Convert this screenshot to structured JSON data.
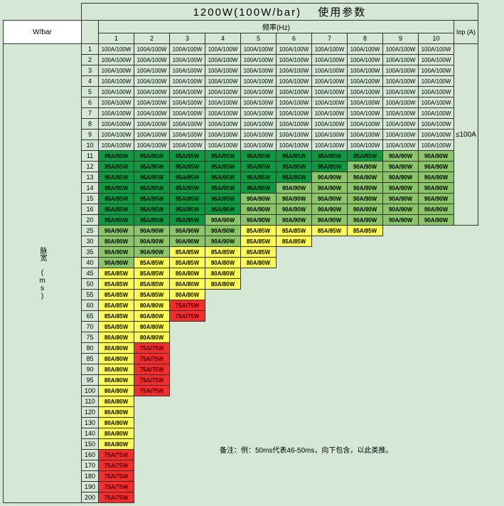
{
  "title": "1200W(100W/bar)　 使用参数",
  "wbar_label": "W/bar",
  "hz_label": "频率(Hz)",
  "iop_label": "Iop (A)",
  "iop_value": "≤100A",
  "rowheader": "脉宽\n(ms)",
  "note": "备注：例：50ms代表46-50ms，向下包含，以此类推。",
  "cols": [
    "1",
    "2",
    "3",
    "4",
    "5",
    "6",
    "7",
    "8",
    "9",
    "10"
  ],
  "colors": {
    "dgreen": "#0a9b3e",
    "lgreen": "#89c765",
    "yellow": "#ffff4d",
    "red": "#ff2a2a",
    "bg": "#d5e7d5"
  },
  "fontsizes": {
    "title": 15,
    "header": 10,
    "cell": 8,
    "rownum": 9
  },
  "rows": [
    {
      "n": "1",
      "c": [
        [
          "100A/100W",
          "w"
        ],
        [
          "100A/100W",
          "w"
        ],
        [
          "100A/100W",
          "w"
        ],
        [
          "100A/100W",
          "w"
        ],
        [
          "100A/100W",
          "w"
        ],
        [
          "100A/100W",
          "w"
        ],
        [
          "100A/100W",
          "w"
        ],
        [
          "100A/100W",
          "w"
        ],
        [
          "100A/100W",
          "w"
        ],
        [
          "100A/100W",
          "w"
        ]
      ]
    },
    {
      "n": "2",
      "c": [
        [
          "100A/100W",
          "w"
        ],
        [
          "100A/100W",
          "w"
        ],
        [
          "100A/100W",
          "w"
        ],
        [
          "100A/100W",
          "w"
        ],
        [
          "100A/100W",
          "w"
        ],
        [
          "100A/100W",
          "w"
        ],
        [
          "100A/100W",
          "w"
        ],
        [
          "100A/100W",
          "w"
        ],
        [
          "100A/100W",
          "w"
        ],
        [
          "100A/100W",
          "w"
        ]
      ]
    },
    {
      "n": "3",
      "c": [
        [
          "100A/100W",
          "w"
        ],
        [
          "100A/100W",
          "w"
        ],
        [
          "100A/100W",
          "w"
        ],
        [
          "100A/100W",
          "w"
        ],
        [
          "100A/100W",
          "w"
        ],
        [
          "100A/100W",
          "w"
        ],
        [
          "100A/100W",
          "w"
        ],
        [
          "100A/100W",
          "w"
        ],
        [
          "100A/100W",
          "w"
        ],
        [
          "100A/100W",
          "w"
        ]
      ]
    },
    {
      "n": "4",
      "c": [
        [
          "100A/100W",
          "w"
        ],
        [
          "100A/100W",
          "w"
        ],
        [
          "100A/100W",
          "w"
        ],
        [
          "100A/100W",
          "w"
        ],
        [
          "100A/100W",
          "w"
        ],
        [
          "100A/100W",
          "w"
        ],
        [
          "100A/100W",
          "w"
        ],
        [
          "100A/100W",
          "w"
        ],
        [
          "100A/100W",
          "w"
        ],
        [
          "100A/100W",
          "w"
        ]
      ]
    },
    {
      "n": "5",
      "c": [
        [
          "100A/100W",
          "w"
        ],
        [
          "100A/100W",
          "w"
        ],
        [
          "100A/100W",
          "w"
        ],
        [
          "100A/100W",
          "w"
        ],
        [
          "100A/100W",
          "w"
        ],
        [
          "100A/100W",
          "w"
        ],
        [
          "100A/100W",
          "w"
        ],
        [
          "100A/100W",
          "w"
        ],
        [
          "100A/100W",
          "w"
        ],
        [
          "100A/100W",
          "w"
        ]
      ]
    },
    {
      "n": "6",
      "c": [
        [
          "100A/100W",
          "w"
        ],
        [
          "100A/100W",
          "w"
        ],
        [
          "100A/100W",
          "w"
        ],
        [
          "100A/100W",
          "w"
        ],
        [
          "100A/100W",
          "w"
        ],
        [
          "100A/100W",
          "w"
        ],
        [
          "100A/100W",
          "w"
        ],
        [
          "100A/100W",
          "w"
        ],
        [
          "100A/100W",
          "w"
        ],
        [
          "100A/100W",
          "w"
        ]
      ]
    },
    {
      "n": "7",
      "c": [
        [
          "100A/100W",
          "w"
        ],
        [
          "100A/100W",
          "w"
        ],
        [
          "100A/100W",
          "w"
        ],
        [
          "100A/100W",
          "w"
        ],
        [
          "100A/100W",
          "w"
        ],
        [
          "100A/100W",
          "w"
        ],
        [
          "100A/100W",
          "w"
        ],
        [
          "100A/100W",
          "w"
        ],
        [
          "100A/100W",
          "w"
        ],
        [
          "100A/100W",
          "w"
        ]
      ]
    },
    {
      "n": "8",
      "c": [
        [
          "100A/100W",
          "w"
        ],
        [
          "100A/100W",
          "w"
        ],
        [
          "100A/100W",
          "w"
        ],
        [
          "100A/100W",
          "w"
        ],
        [
          "100A/100W",
          "w"
        ],
        [
          "100A/100W",
          "w"
        ],
        [
          "100A/100W",
          "w"
        ],
        [
          "100A/100W",
          "w"
        ],
        [
          "100A/100W",
          "w"
        ],
        [
          "100A/100W",
          "w"
        ]
      ]
    },
    {
      "n": "9",
      "c": [
        [
          "100A/100W",
          "w"
        ],
        [
          "100A/100W",
          "w"
        ],
        [
          "100A/100W",
          "w"
        ],
        [
          "100A/100W",
          "w"
        ],
        [
          "100A/100W",
          "w"
        ],
        [
          "100A/100W",
          "w"
        ],
        [
          "100A/100W",
          "w"
        ],
        [
          "100A/100W",
          "w"
        ],
        [
          "100A/100W",
          "w"
        ],
        [
          "100A/100W",
          "w"
        ]
      ]
    },
    {
      "n": "10",
      "c": [
        [
          "100A/100W",
          "w"
        ],
        [
          "100A/100W",
          "w"
        ],
        [
          "100A/100W",
          "w"
        ],
        [
          "100A/100W",
          "w"
        ],
        [
          "100A/100W",
          "w"
        ],
        [
          "100A/100W",
          "w"
        ],
        [
          "100A/100W",
          "w"
        ],
        [
          "100A/100W",
          "w"
        ],
        [
          "100A/100W",
          "w"
        ],
        [
          "100A/100W",
          "w"
        ]
      ]
    },
    {
      "n": "11",
      "c": [
        [
          "95A/95W",
          "dg"
        ],
        [
          "95A/95W",
          "dg"
        ],
        [
          "95A/95W",
          "dg"
        ],
        [
          "95A/95W",
          "dg"
        ],
        [
          "95A/95W",
          "dg"
        ],
        [
          "95A/95W",
          "dg"
        ],
        [
          "95A/95W",
          "dg"
        ],
        [
          "95A/95W",
          "dg"
        ],
        [
          "90A/90W",
          "lg"
        ],
        [
          "90A/90W",
          "lg"
        ]
      ]
    },
    {
      "n": "12",
      "c": [
        [
          "95A/95W",
          "dg"
        ],
        [
          "95A/95W",
          "dg"
        ],
        [
          "95A/95W",
          "dg"
        ],
        [
          "95A/95W",
          "dg"
        ],
        [
          "95A/95W",
          "dg"
        ],
        [
          "95A/95W",
          "dg"
        ],
        [
          "95A/95W",
          "dg"
        ],
        [
          "90A/90W",
          "lg"
        ],
        [
          "90A/90W",
          "lg"
        ],
        [
          "90A/90W",
          "lg"
        ]
      ]
    },
    {
      "n": "13",
      "c": [
        [
          "95A/95W",
          "dg"
        ],
        [
          "95A/95W",
          "dg"
        ],
        [
          "95A/95W",
          "dg"
        ],
        [
          "95A/95W",
          "dg"
        ],
        [
          "95A/95W",
          "dg"
        ],
        [
          "95A/95W",
          "dg"
        ],
        [
          "90A/90W",
          "lg"
        ],
        [
          "90A/90W",
          "lg"
        ],
        [
          "90A/90W",
          "lg"
        ],
        [
          "90A/90W",
          "lg"
        ]
      ]
    },
    {
      "n": "14",
      "c": [
        [
          "95A/95W",
          "dg"
        ],
        [
          "95A/95W",
          "dg"
        ],
        [
          "95A/95W",
          "dg"
        ],
        [
          "95A/95W",
          "dg"
        ],
        [
          "95A/95W",
          "dg"
        ],
        [
          "90A/90W",
          "lg"
        ],
        [
          "90A/90W",
          "lg"
        ],
        [
          "90A/90W",
          "lg"
        ],
        [
          "90A/90W",
          "lg"
        ],
        [
          "90A/90W",
          "lg"
        ]
      ]
    },
    {
      "n": "15",
      "c": [
        [
          "95A/95W",
          "dg"
        ],
        [
          "95A/95W",
          "dg"
        ],
        [
          "95A/95W",
          "dg"
        ],
        [
          "95A/95W",
          "dg"
        ],
        [
          "90A/90W",
          "lg"
        ],
        [
          "90A/90W",
          "lg"
        ],
        [
          "90A/90W",
          "lg"
        ],
        [
          "90A/90W",
          "lg"
        ],
        [
          "90A/90W",
          "lg"
        ],
        [
          "90A/90W",
          "lg"
        ]
      ]
    },
    {
      "n": "16",
      "c": [
        [
          "95A/95W",
          "dg"
        ],
        [
          "95A/95W",
          "dg"
        ],
        [
          "95A/95W",
          "dg"
        ],
        [
          "95A/95W",
          "dg"
        ],
        [
          "90A/90W",
          "lg"
        ],
        [
          "90A/90W",
          "lg"
        ],
        [
          "90A/90W",
          "lg"
        ],
        [
          "90A/90W",
          "lg"
        ],
        [
          "90A/90W",
          "lg"
        ],
        [
          "90A/90W",
          "lg"
        ]
      ]
    },
    {
      "n": "20",
      "c": [
        [
          "95A/95W",
          "dg"
        ],
        [
          "95A/95W",
          "dg"
        ],
        [
          "95A/95W",
          "dg"
        ],
        [
          "90A/90W",
          "lg"
        ],
        [
          "90A/90W",
          "lg"
        ],
        [
          "90A/90W",
          "lg"
        ],
        [
          "90A/90W",
          "lg"
        ],
        [
          "90A/90W",
          "lg"
        ],
        [
          "90A/90W",
          "lg"
        ],
        [
          "90A/90W",
          "lg"
        ]
      ]
    },
    {
      "n": "25",
      "c": [
        [
          "90A/90W",
          "lg"
        ],
        [
          "90A/90W",
          "lg"
        ],
        [
          "90A/90W",
          "lg"
        ],
        [
          "90A/90W",
          "lg"
        ],
        [
          "85A/85W",
          "y"
        ],
        [
          "85A/85W",
          "y"
        ],
        [
          "85A/85W",
          "y"
        ],
        [
          "85A/85W",
          "y"
        ]
      ]
    },
    {
      "n": "30",
      "c": [
        [
          "90A/90W",
          "lg"
        ],
        [
          "90A/90W",
          "lg"
        ],
        [
          "90A/90W",
          "lg"
        ],
        [
          "90A/90W",
          "lg"
        ],
        [
          "85A/85W",
          "y"
        ],
        [
          "85A/85W",
          "y"
        ]
      ]
    },
    {
      "n": "35",
      "c": [
        [
          "90A/90W",
          "lg"
        ],
        [
          "90A/90W",
          "lg"
        ],
        [
          "85A/85W",
          "y"
        ],
        [
          "85A/85W",
          "y"
        ],
        [
          "85A/85W",
          "y"
        ]
      ]
    },
    {
      "n": "40",
      "c": [
        [
          "90A/90W",
          "lg"
        ],
        [
          "85A/85W",
          "y"
        ],
        [
          "85A/85W",
          "y"
        ],
        [
          "80A/80W",
          "y"
        ],
        [
          "80A/80W",
          "y"
        ]
      ]
    },
    {
      "n": "45",
      "c": [
        [
          "85A/85W",
          "y"
        ],
        [
          "85A/85W",
          "y"
        ],
        [
          "80A/80W",
          "y"
        ],
        [
          "80A/80W",
          "y"
        ]
      ]
    },
    {
      "n": "50",
      "c": [
        [
          "85A/85W",
          "y"
        ],
        [
          "85A/85W",
          "y"
        ],
        [
          "80A/80W",
          "y"
        ],
        [
          "80A/80W",
          "y"
        ]
      ]
    },
    {
      "n": "55",
      "c": [
        [
          "85A/85W",
          "y"
        ],
        [
          "85A/85W",
          "y"
        ],
        [
          "80A/80W",
          "y"
        ]
      ]
    },
    {
      "n": "60",
      "c": [
        [
          "85A/85W",
          "y"
        ],
        [
          "80A/80W",
          "y"
        ],
        [
          "75A/75W",
          "r"
        ]
      ]
    },
    {
      "n": "65",
      "c": [
        [
          "85A/85W",
          "y"
        ],
        [
          "80A/80W",
          "y"
        ],
        [
          "75A/75W",
          "r"
        ]
      ]
    },
    {
      "n": "70",
      "c": [
        [
          "85A/85W",
          "y"
        ],
        [
          "80A/80W",
          "y"
        ]
      ]
    },
    {
      "n": "75",
      "c": [
        [
          "80A/80W",
          "y"
        ],
        [
          "80A/80W",
          "y"
        ]
      ]
    },
    {
      "n": "80",
      "c": [
        [
          "80A/80W",
          "y"
        ],
        [
          "75A/75W",
          "r"
        ]
      ]
    },
    {
      "n": "85",
      "c": [
        [
          "80A/80W",
          "y"
        ],
        [
          "75A/75W",
          "r"
        ]
      ]
    },
    {
      "n": "90",
      "c": [
        [
          "80A/80W",
          "y"
        ],
        [
          "75A/75W",
          "r"
        ]
      ]
    },
    {
      "n": "95",
      "c": [
        [
          "80A/80W",
          "y"
        ],
        [
          "75A/75W",
          "r"
        ]
      ]
    },
    {
      "n": "100",
      "c": [
        [
          "80A/80W",
          "y"
        ],
        [
          "75A/75W",
          "r"
        ]
      ]
    },
    {
      "n": "110",
      "c": [
        [
          "80A/80W",
          "y"
        ]
      ]
    },
    {
      "n": "120",
      "c": [
        [
          "80A/80W",
          "y"
        ]
      ]
    },
    {
      "n": "130",
      "c": [
        [
          "80A/80W",
          "y"
        ]
      ]
    },
    {
      "n": "140",
      "c": [
        [
          "80A/80W",
          "y"
        ]
      ]
    },
    {
      "n": "150",
      "c": [
        [
          "80A/80W",
          "y"
        ]
      ]
    },
    {
      "n": "160",
      "c": [
        [
          "75A/75W",
          "r"
        ]
      ]
    },
    {
      "n": "170",
      "c": [
        [
          "75A/75W",
          "r"
        ]
      ]
    },
    {
      "n": "180",
      "c": [
        [
          "75A/75W",
          "r"
        ]
      ]
    },
    {
      "n": "190",
      "c": [
        [
          "75A/75W",
          "r"
        ]
      ]
    },
    {
      "n": "200",
      "c": [
        [
          "75A/75W",
          "r"
        ]
      ]
    }
  ],
  "noteRowStart": 37
}
